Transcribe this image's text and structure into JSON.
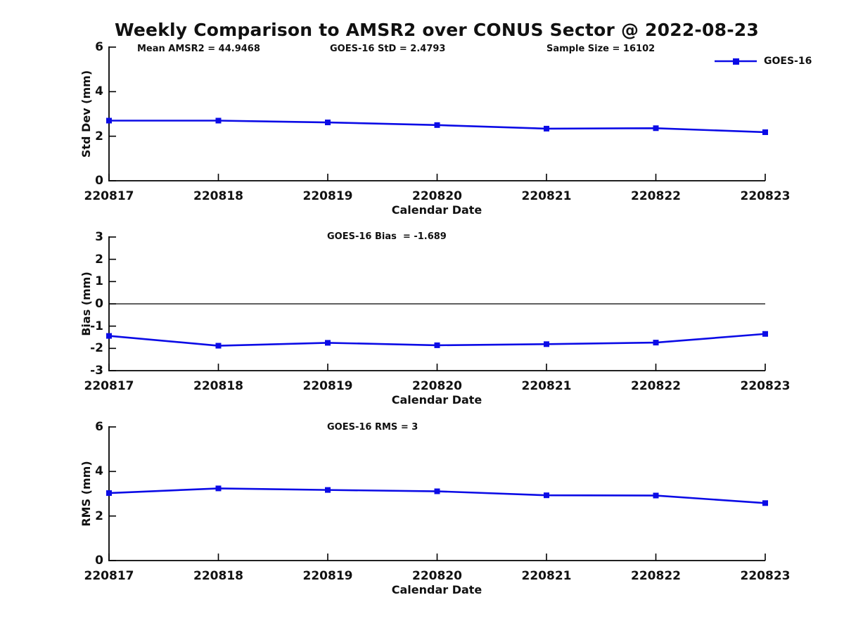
{
  "header": {
    "title": "Weekly Comparison to AMSR2 over CONUS Sector @ 2022-08-23"
  },
  "colors": {
    "series": "#0b0be6",
    "axis": "#000000",
    "background": "#ffffff",
    "text": "#111111"
  },
  "legend": {
    "label": "GOES-16",
    "position": "upper right",
    "marker": "square"
  },
  "chart_data": [
    {
      "id": "stddev",
      "type": "line",
      "categories": [
        "220817",
        "220818",
        "220819",
        "220820",
        "220821",
        "220822",
        "220823"
      ],
      "series": [
        {
          "name": "GOES-16",
          "values": [
            2.7,
            2.7,
            2.62,
            2.5,
            2.34,
            2.36,
            2.18
          ]
        }
      ],
      "annotations": [
        {
          "text": "Mean AMSR2 = 44.9468"
        },
        {
          "text": "GOES-16 StD = 2.4793"
        },
        {
          "text": "Sample Size = 16102"
        }
      ],
      "xlabel": "Calendar Date",
      "ylabel": "Std Dev (mm)",
      "ylim": [
        0,
        6
      ],
      "yticks": [
        0,
        2,
        4,
        6
      ],
      "zero_line": false,
      "grid": false,
      "marker": "square",
      "legend_visible": true
    },
    {
      "id": "bias",
      "type": "line",
      "categories": [
        "220817",
        "220818",
        "220819",
        "220820",
        "220821",
        "220822",
        "220823"
      ],
      "series": [
        {
          "name": "GOES-16",
          "values": [
            -1.44,
            -1.88,
            -1.75,
            -1.86,
            -1.81,
            -1.74,
            -1.35
          ]
        }
      ],
      "annotations": [
        {
          "text": "GOES-16 Bias  = -1.689"
        }
      ],
      "xlabel": "Calendar Date",
      "ylabel": "Bias (mm)",
      "ylim": [
        -3,
        3
      ],
      "yticks": [
        -3,
        -2,
        -1,
        0,
        1,
        2,
        3
      ],
      "zero_line": true,
      "grid": false,
      "marker": "square",
      "legend_visible": false
    },
    {
      "id": "rms",
      "type": "line",
      "categories": [
        "220817",
        "220818",
        "220819",
        "220820",
        "220821",
        "220822",
        "220823"
      ],
      "series": [
        {
          "name": "GOES-16",
          "values": [
            3.03,
            3.24,
            3.17,
            3.11,
            2.93,
            2.92,
            2.58
          ]
        }
      ],
      "annotations": [
        {
          "text": "GOES-16 RMS = 3"
        }
      ],
      "xlabel": "Calendar Date",
      "ylabel": "RMS (mm)",
      "ylim": [
        0,
        6
      ],
      "yticks": [
        0,
        2,
        4,
        6
      ],
      "zero_line": false,
      "grid": false,
      "marker": "square",
      "legend_visible": false
    }
  ]
}
